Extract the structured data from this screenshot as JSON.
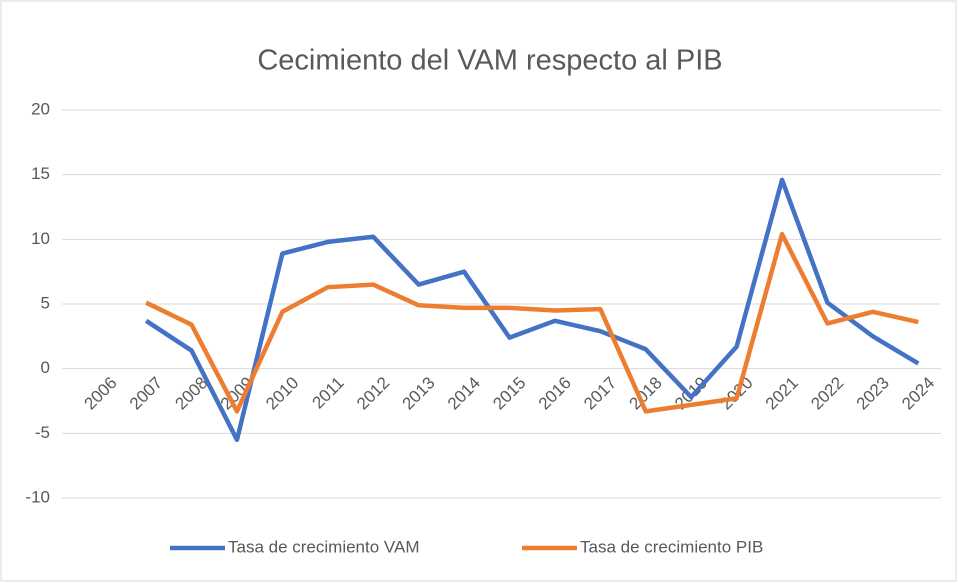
{
  "chart_data": {
    "type": "line",
    "title": "Cecimiento del VAM respecto al PIB",
    "categories": [
      "2006",
      "2007",
      "2008",
      "2009",
      "2010",
      "2011",
      "2012",
      "2013",
      "2014",
      "2015",
      "2016",
      "2017",
      "2018",
      "2019",
      "2020",
      "2021",
      "2022",
      "2023",
      "2024"
    ],
    "series": [
      {
        "name": "Tasa de crecimiento VAM",
        "color": "#4472c4",
        "values": [
          null,
          3.7,
          1.4,
          -5.5,
          8.9,
          9.8,
          10.2,
          6.5,
          7.5,
          2.4,
          3.7,
          2.9,
          1.5,
          -2.2,
          1.7,
          14.6,
          5.1,
          2.5,
          0.4
        ]
      },
      {
        "name": "Tasa de crecimiento PIB",
        "color": "#ed7d31",
        "values": [
          null,
          5.1,
          3.4,
          -3.3,
          4.4,
          6.3,
          6.5,
          4.9,
          4.7,
          4.7,
          4.5,
          4.6,
          -3.3,
          -2.8,
          -2.3,
          10.4,
          3.5,
          4.4,
          3.6
        ]
      }
    ],
    "ylim": [
      -10,
      20
    ],
    "yticks": [
      -10,
      -5,
      0,
      5,
      10,
      15,
      20
    ],
    "grid": true,
    "legend": "bottom"
  }
}
